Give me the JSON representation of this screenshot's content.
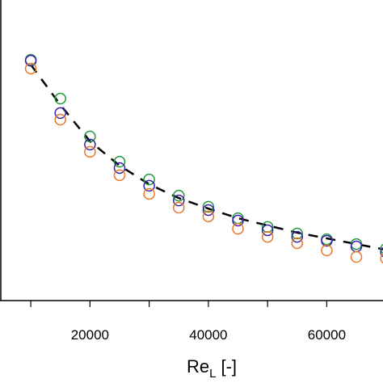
{
  "chart_data": {
    "type": "scatter",
    "x_label": {
      "main": "Re",
      "subscript": "L",
      "suffix": "[-]"
    },
    "x": [
      10000,
      15000,
      20000,
      25000,
      30000,
      35000,
      40000,
      45000,
      50000,
      55000,
      60000,
      65000,
      70000
    ],
    "xlim": [
      4800,
      69500
    ],
    "xticks": [
      20000,
      40000,
      60000
    ],
    "xminor_ticks": [
      10000,
      30000,
      50000,
      70000
    ],
    "ylim": [
      0,
      10
    ],
    "series": [
      {
        "marker": "circle",
        "color": "#1f9a3f",
        "values": [
          8.01,
          6.72,
          5.46,
          4.62,
          4.03,
          3.49,
          3.12,
          2.74,
          2.45,
          2.23,
          2.04,
          1.88,
          1.72
        ]
      },
      {
        "marker": "circle",
        "color": "#3b1fa8",
        "values": [
          7.98,
          6.24,
          5.19,
          4.41,
          3.82,
          3.33,
          3.01,
          2.66,
          2.34,
          2.12,
          1.99,
          1.8,
          1.61
        ]
      },
      {
        "marker": "circle",
        "color": "#e8782a",
        "values": [
          7.72,
          6.02,
          4.95,
          4.17,
          3.55,
          3.09,
          2.8,
          2.39,
          2.12,
          1.91,
          1.67,
          1.45,
          1.4
        ]
      },
      {
        "marker": "line",
        "line_style": "dashed",
        "color": "#000000",
        "values": [
          7.85,
          6.51,
          5.3,
          4.49,
          3.87,
          3.41,
          3.06,
          2.74,
          2.5,
          2.26,
          2.07,
          1.88,
          1.69
        ]
      }
    ]
  }
}
